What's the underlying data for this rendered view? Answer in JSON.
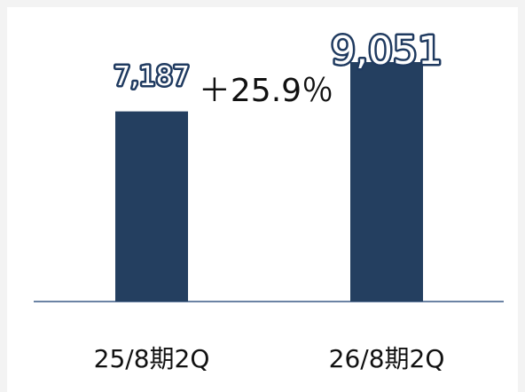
{
  "chart_data": {
    "type": "bar",
    "categories": [
      "25/8期2Q",
      "26/8期2Q"
    ],
    "values": [
      7187,
      9051
    ],
    "value_labels": [
      "7,187",
      "9,051"
    ],
    "color": "#243f60",
    "annotation": "＋25.9％"
  }
}
